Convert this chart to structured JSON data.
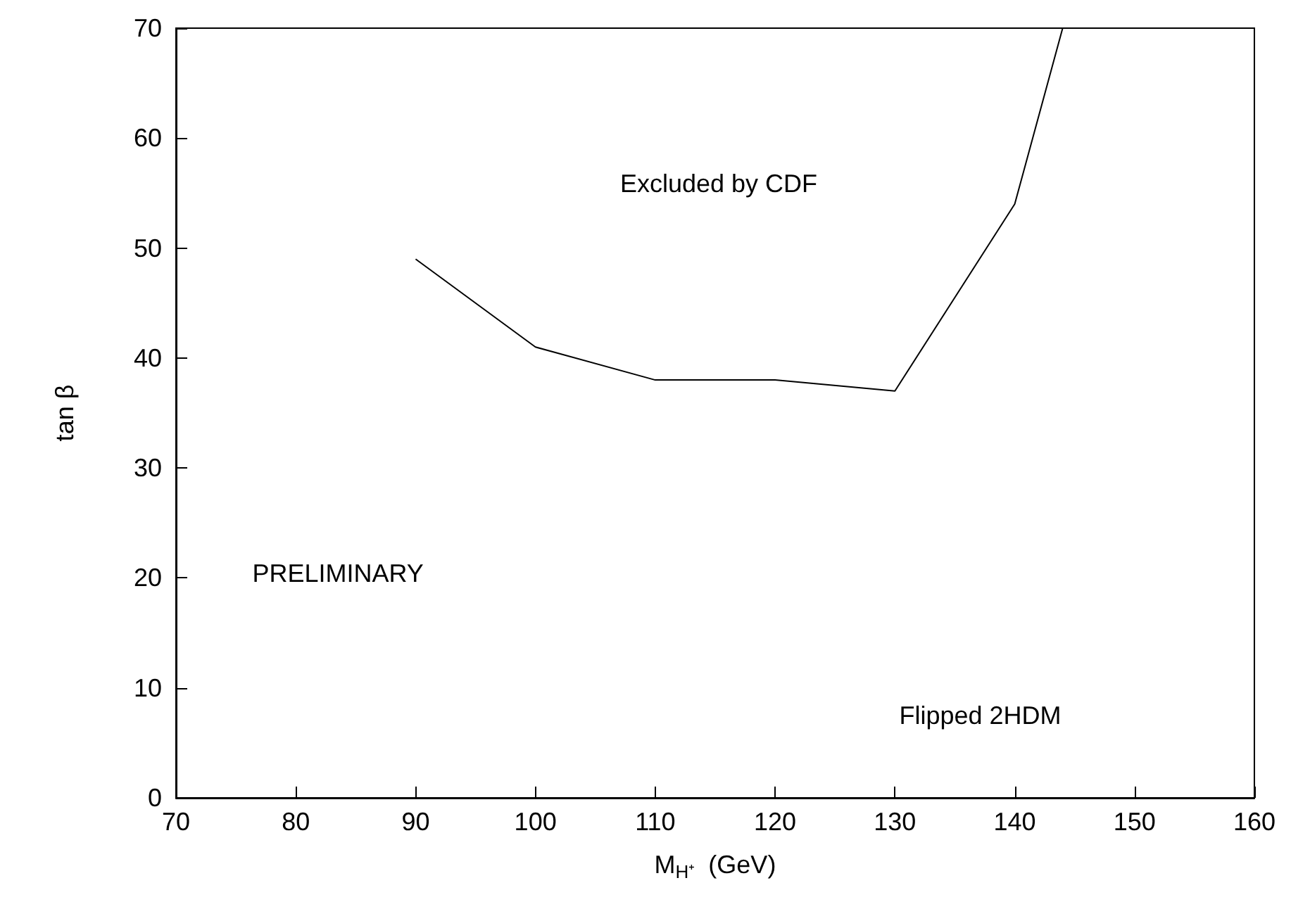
{
  "chart_data": {
    "type": "line",
    "xlabel": "M$_{H⁺}$  (GeV)",
    "ylabel": "tan β",
    "x": [
      90,
      100,
      110,
      120,
      130,
      140,
      144
    ],
    "series": [
      {
        "color": "#000000",
        "values": [
          49,
          41,
          38,
          38,
          37,
          54,
          70
        ]
      }
    ],
    "xlim": [
      70,
      160
    ],
    "xticks": [
      70,
      80,
      90,
      100,
      110,
      120,
      130,
      140,
      150,
      160
    ],
    "ylim": [
      0,
      70
    ],
    "yticks": [
      0,
      10,
      20,
      30,
      40,
      50,
      60,
      70
    ],
    "annotations": [
      "Excluded by CDF",
      "PRELIMINARY",
      "Flipped 2HDM"
    ],
    "grid": false,
    "marker": "none",
    "line_style": "solid"
  }
}
